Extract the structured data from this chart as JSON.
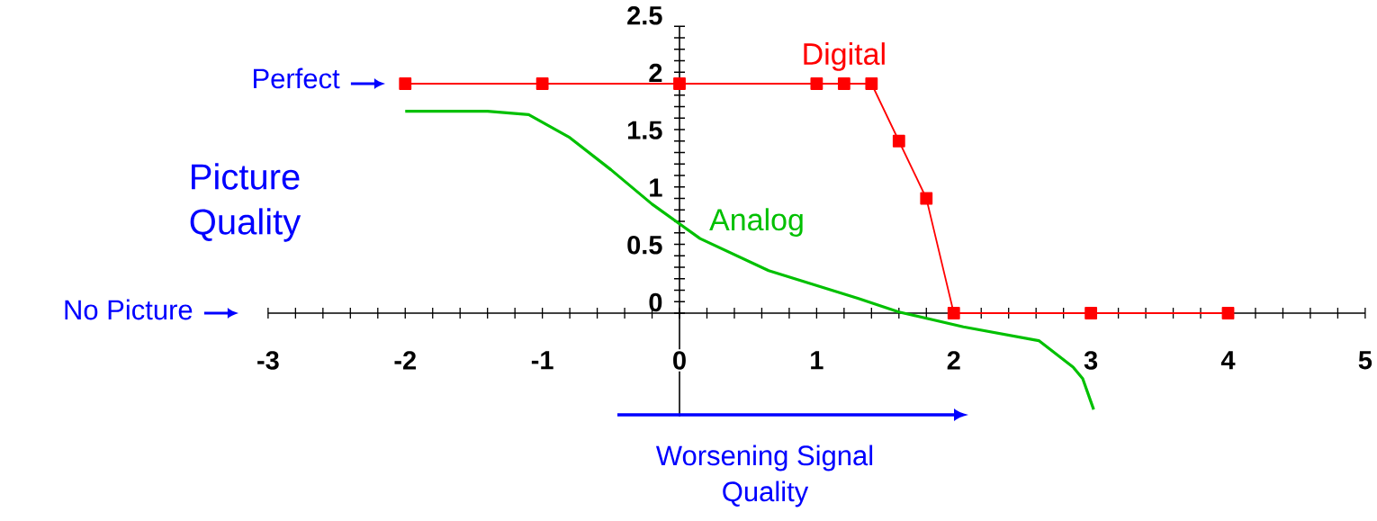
{
  "chart_data": {
    "type": "line",
    "xlabel": "Worsening Signal Quality",
    "ylabel": "Picture Quality",
    "xlim": [
      -3,
      5
    ],
    "xticks": [
      -3,
      -2,
      -1,
      0,
      1,
      2,
      3,
      4,
      5
    ],
    "ylim": [
      -0.9,
      2.5
    ],
    "yticks": [
      0,
      0.5,
      1,
      1.5,
      2,
      2.5
    ],
    "series": [
      {
        "name": "Digital",
        "color": "#ff0000",
        "marker": "square",
        "x": [
          -2,
          -1,
          0,
          1,
          1.2,
          1.4,
          1.6,
          1.8,
          2,
          3,
          4
        ],
        "values": [
          2,
          2,
          2,
          2,
          2,
          2,
          1.5,
          1.0,
          0,
          0,
          0
        ]
      },
      {
        "name": "Analog",
        "color": "#00c000",
        "marker": "none",
        "x": [
          -2,
          -1.4,
          -1.1,
          -0.8,
          -0.5,
          -0.2,
          0.15,
          0.65,
          1.3,
          1.6,
          2.07,
          2.62,
          2.87,
          2.94,
          3.02
        ],
        "values": [
          1.76,
          1.76,
          1.73,
          1.53,
          1.25,
          0.95,
          0.65,
          0.37,
          0.13,
          0.01,
          -0.12,
          -0.24,
          -0.47,
          -0.57,
          -0.84
        ]
      }
    ],
    "annotations": [
      "Perfect",
      "No Picture"
    ]
  }
}
